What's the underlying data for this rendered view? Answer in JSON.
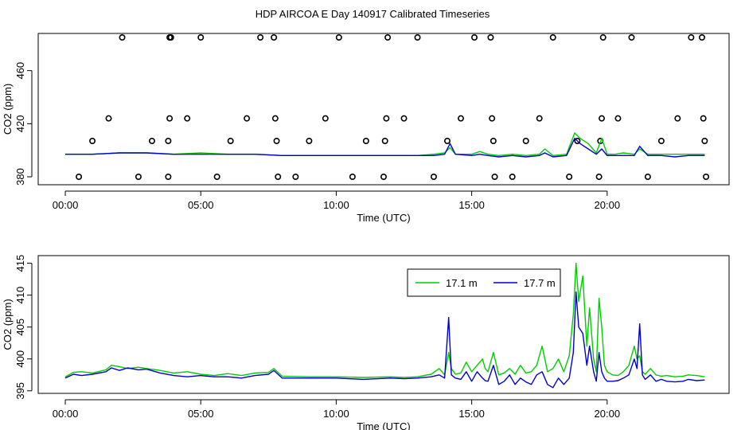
{
  "title": "HDP AIRCOA E  Day 140917  Calibrated Timeseries",
  "chart_data": [
    {
      "type": "line",
      "xlabel": "Time (UTC)",
      "ylabel": "CO2 (ppm)",
      "xlim": [
        -1.0,
        24.5
      ],
      "ylim": [
        374,
        488
      ],
      "xticks": [
        0,
        5,
        10,
        15,
        20
      ],
      "xtick_labels": [
        "00:00",
        "05:00",
        "10:00",
        "15:00",
        "20:00"
      ],
      "yticks": [
        380,
        420,
        460
      ],
      "ytick_labels": [
        "380",
        "420",
        "460"
      ],
      "grid": false,
      "series": [
        {
          "color": "#00cc00",
          "x": [
            0,
            1,
            2,
            3,
            4,
            5,
            6,
            7,
            8,
            9,
            10,
            11,
            12,
            13,
            13.6,
            14.0,
            14.2,
            14.4,
            15.0,
            15.3,
            15.6,
            16.0,
            16.5,
            17.0,
            17.5,
            17.7,
            18.0,
            18.5,
            18.8,
            19.0,
            19.3,
            19.6,
            19.8,
            20.0,
            20.3,
            20.6,
            21.0,
            21.2,
            21.5,
            22.0,
            22.5,
            23.0,
            23.6
          ],
          "y": [
            397,
            397,
            398,
            398,
            397,
            398,
            397,
            397,
            396,
            396,
            396,
            396,
            396,
            396,
            397,
            398,
            402,
            397,
            397,
            399,
            397,
            396,
            397,
            396,
            397,
            401,
            396,
            397,
            413,
            409,
            405,
            398,
            409,
            397,
            397,
            398,
            397,
            401,
            397,
            397,
            397,
            397,
            397
          ]
        },
        {
          "color": "#0000cc",
          "x": [
            0,
            1,
            2,
            3,
            4,
            5,
            6,
            7,
            8,
            9,
            10,
            11,
            12,
            13,
            13.6,
            14.0,
            14.2,
            14.4,
            15.0,
            15.3,
            15.6,
            16.0,
            16.5,
            17.0,
            17.5,
            17.7,
            18.0,
            18.5,
            18.8,
            19.0,
            19.3,
            19.6,
            19.8,
            20.0,
            20.3,
            20.6,
            21.0,
            21.2,
            21.5,
            22.0,
            22.5,
            23.0,
            23.6
          ],
          "y": [
            397,
            397,
            398,
            398,
            397,
            397,
            397,
            397,
            396,
            396,
            396,
            396,
            396,
            396,
            396,
            397,
            405,
            397,
            396,
            397,
            396,
            395,
            396,
            395,
            396,
            398,
            395,
            396,
            409,
            405,
            401,
            397,
            401,
            396,
            396,
            396,
            396,
            403,
            396,
            396,
            395,
            396,
            396
          ]
        }
      ],
      "markers": {
        "symbol": "circle",
        "x": [
          0.5,
          1.0,
          1.6,
          2.1,
          2.7,
          3.2,
          3.8,
          3.8,
          3.85,
          3.85,
          3.9,
          4.5,
          5.0,
          5.6,
          6.1,
          6.7,
          7.2,
          7.7,
          7.75,
          7.8,
          7.85,
          8.5,
          9.0,
          9.6,
          10.1,
          10.6,
          11.1,
          11.75,
          11.8,
          11.85,
          11.9,
          12.5,
          13.0,
          13.6,
          14.1,
          14.6,
          15.1,
          15.7,
          15.75,
          15.8,
          15.85,
          16.5,
          17.0,
          17.5,
          18.0,
          18.6,
          18.9,
          19.7,
          19.75,
          19.8,
          19.85,
          20.4,
          20.9,
          21.5,
          22.0,
          22.6,
          23.1,
          23.5,
          23.55,
          23.6,
          23.65
        ],
        "y": [
          380,
          407,
          424,
          485,
          380,
          407,
          380,
          407,
          424,
          485,
          485,
          424,
          485,
          380,
          407,
          424,
          485,
          485,
          424,
          407,
          380,
          380,
          407,
          424,
          485,
          380,
          407,
          380,
          407,
          424,
          485,
          424,
          485,
          380,
          407,
          424,
          485,
          485,
          424,
          407,
          380,
          380,
          407,
          424,
          485,
          380,
          407,
          380,
          407,
          424,
          485,
          424,
          485,
          380,
          407,
          424,
          485,
          485,
          424,
          407,
          380
        ]
      }
    },
    {
      "type": "line",
      "xlabel": "Time (UTC)",
      "ylabel": "CO2 (ppm)",
      "xlim": [
        -1.0,
        24.5
      ],
      "ylim": [
        394.6,
        416.2
      ],
      "xticks": [
        0,
        5,
        10,
        15,
        20
      ],
      "xtick_labels": [
        "00:00",
        "05:00",
        "10:00",
        "15:00",
        "20:00"
      ],
      "yticks": [
        395,
        400,
        405,
        410,
        415
      ],
      "ytick_labels": [
        "395",
        "400",
        "405",
        "410",
        "415"
      ],
      "grid": false,
      "legend": {
        "position": "top-right",
        "entries": [
          "17.1 m",
          "17.7 m"
        ]
      },
      "series": [
        {
          "name": "17.1 m",
          "color": "#00cc00",
          "x": [
            0,
            0.3,
            0.6,
            1.0,
            1.5,
            1.7,
            2.0,
            2.3,
            2.7,
            3.0,
            3.5,
            4.0,
            4.5,
            5.0,
            5.5,
            6.0,
            6.5,
            7.0,
            7.5,
            7.7,
            8.0,
            9.0,
            10.0,
            11.0,
            12.0,
            12.5,
            13.0,
            13.5,
            13.8,
            14.0,
            14.15,
            14.25,
            14.4,
            14.6,
            14.8,
            15.0,
            15.2,
            15.4,
            15.5,
            15.6,
            15.8,
            16.0,
            16.2,
            16.4,
            16.6,
            16.8,
            17.0,
            17.2,
            17.4,
            17.6,
            17.8,
            18.0,
            18.2,
            18.4,
            18.6,
            18.75,
            18.85,
            18.95,
            19.1,
            19.25,
            19.35,
            19.5,
            19.6,
            19.7,
            19.8,
            19.9,
            20.0,
            20.2,
            20.4,
            20.6,
            20.8,
            21.0,
            21.1,
            21.2,
            21.3,
            21.4,
            21.6,
            21.8,
            22.0,
            22.2,
            22.5,
            22.8,
            23.0,
            23.3,
            23.6
          ],
          "y": [
            397.2,
            397.9,
            398.0,
            397.8,
            398.3,
            399.0,
            398.8,
            398.5,
            398.7,
            398.5,
            398.2,
            397.8,
            398.0,
            397.6,
            397.4,
            397.7,
            397.4,
            397.8,
            397.9,
            398.5,
            397.3,
            397.2,
            397.2,
            397.1,
            397.2,
            397.1,
            397.2,
            397.6,
            398.5,
            397.5,
            401.0,
            398.5,
            397.6,
            397.8,
            399.5,
            398.0,
            399.0,
            400.0,
            398.5,
            398.0,
            401.0,
            397.5,
            397.8,
            398.5,
            397.6,
            399.0,
            397.8,
            398.0,
            399.0,
            402.0,
            398.0,
            398.5,
            400.0,
            398.0,
            400.5,
            407.0,
            415.0,
            409.0,
            413.0,
            402.0,
            408.0,
            400.0,
            398.0,
            409.5,
            405.0,
            399.0,
            398.0,
            397.5,
            397.4,
            398.0,
            399.0,
            402.0,
            400.0,
            400.5,
            398.0,
            397.6,
            398.5,
            397.5,
            397.3,
            397.4,
            397.2,
            397.3,
            397.5,
            397.4,
            397.2
          ]
        },
        {
          "name": "17.7 m",
          "color": "#0000cc",
          "x": [
            0,
            0.3,
            0.6,
            1.0,
            1.5,
            1.7,
            2.0,
            2.3,
            2.7,
            3.0,
            3.5,
            4.0,
            4.5,
            5.0,
            5.5,
            6.0,
            6.5,
            7.0,
            7.5,
            7.7,
            8.0,
            9.0,
            10.0,
            11.0,
            12.0,
            12.5,
            13.0,
            13.5,
            13.8,
            14.0,
            14.15,
            14.25,
            14.4,
            14.6,
            14.8,
            15.0,
            15.2,
            15.4,
            15.5,
            15.6,
            15.8,
            16.0,
            16.2,
            16.4,
            16.6,
            16.8,
            17.0,
            17.2,
            17.4,
            17.6,
            17.8,
            18.0,
            18.2,
            18.4,
            18.6,
            18.75,
            18.85,
            18.95,
            19.1,
            19.25,
            19.35,
            19.5,
            19.6,
            19.7,
            19.8,
            19.9,
            20.0,
            20.2,
            20.4,
            20.6,
            20.8,
            21.0,
            21.1,
            21.2,
            21.3,
            21.4,
            21.6,
            21.8,
            22.0,
            22.2,
            22.5,
            22.8,
            23.0,
            23.3,
            23.6
          ],
          "y": [
            397.0,
            397.6,
            397.4,
            397.6,
            398.0,
            398.6,
            398.2,
            398.6,
            398.3,
            398.4,
            397.8,
            397.4,
            397.2,
            397.4,
            397.2,
            397.2,
            397.0,
            397.4,
            397.6,
            398.2,
            397.0,
            397.0,
            397.0,
            396.8,
            397.0,
            396.9,
            397.0,
            397.2,
            397.5,
            397.0,
            406.5,
            397.5,
            397.0,
            396.8,
            398.0,
            396.5,
            398.0,
            397.0,
            396.6,
            396.5,
            399.0,
            396.0,
            396.5,
            397.5,
            396.0,
            397.0,
            396.4,
            396.0,
            397.5,
            398.0,
            396.0,
            395.5,
            397.0,
            396.0,
            397.0,
            401.0,
            410.5,
            405.0,
            404.0,
            399.0,
            402.0,
            398.0,
            396.5,
            401.0,
            398.0,
            397.0,
            396.5,
            396.5,
            396.6,
            397.0,
            397.5,
            400.0,
            398.5,
            405.5,
            397.5,
            396.8,
            397.5,
            396.5,
            396.8,
            396.5,
            396.4,
            396.5,
            396.8,
            396.6,
            396.7
          ]
        }
      ]
    }
  ]
}
